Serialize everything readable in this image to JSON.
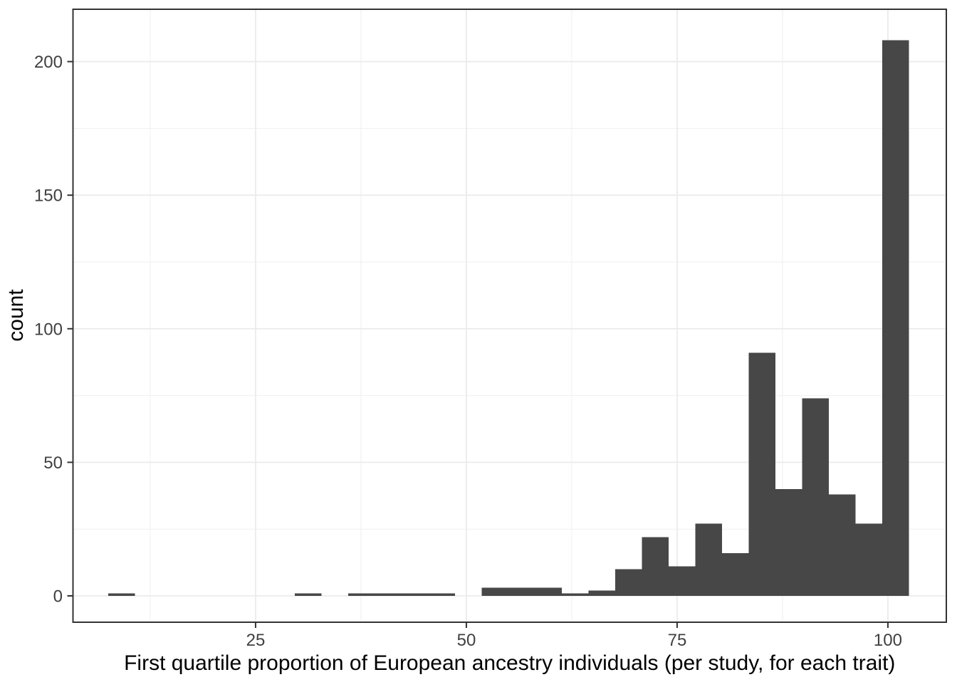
{
  "figure": {
    "description": "Histogram of first quartile proportion of European ancestry individuals"
  },
  "chart_data": {
    "type": "bar",
    "subtype": "histogram",
    "title": "",
    "xlabel": "First quartile proportion of European ancestry individuals (per study, for each trait)",
    "ylabel": "count",
    "xlim": [
      3.34,
      106.93
    ],
    "ylim": [
      -9.86,
      219.6
    ],
    "x_ticks": [
      25,
      50,
      75,
      100
    ],
    "y_ticks": [
      0,
      50,
      100,
      150,
      200
    ],
    "x_minor_ticks": [
      12.5,
      37.5,
      62.5,
      87.5
    ],
    "y_minor_ticks": [
      25,
      75,
      125,
      175
    ],
    "grid": "on",
    "legend": "none",
    "bin_width": 3.167,
    "bin_edges": [
      7.5,
      10.67,
      13.83,
      17.0,
      20.17,
      23.33,
      26.5,
      29.67,
      32.83,
      36.0,
      39.17,
      42.33,
      45.5,
      48.67,
      51.83,
      55.0,
      58.17,
      61.33,
      64.5,
      67.67,
      70.83,
      74.0,
      77.17,
      80.33,
      83.5,
      86.67,
      89.83,
      93.0,
      96.17,
      99.33,
      102.5
    ],
    "counts": [
      1,
      0,
      0,
      0,
      0,
      0,
      0,
      1,
      0,
      1,
      1,
      1,
      1,
      0,
      3,
      3,
      3,
      1,
      2,
      10,
      22,
      11,
      27,
      16,
      91,
      40,
      74,
      38,
      27,
      208
    ],
    "colors": {
      "bar": "#474747",
      "grid_major": "#ebebeb",
      "grid_minor": "#efefef",
      "panel_border": "#333333",
      "tick_mark": "#333333",
      "tick_label": "#404040",
      "axis_title": "#000000",
      "background": "#ffffff"
    }
  }
}
